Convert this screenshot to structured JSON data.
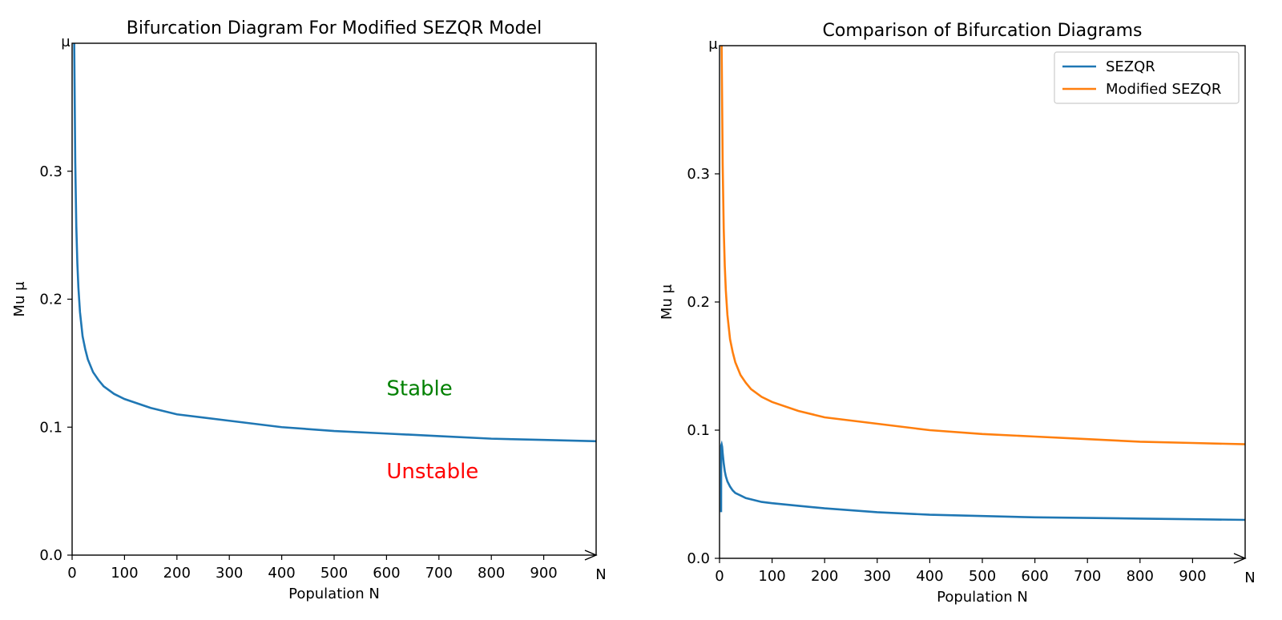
{
  "chart_data": [
    {
      "type": "line",
      "title": "Bifurcation Diagram For Modified SEZQR Model",
      "xlabel": "Population N",
      "ylabel": "Mu μ",
      "x_axis_end_label": "N",
      "y_axis_end_label": "μ",
      "xlim": [
        0,
        1000
      ],
      "ylim": [
        0,
        0.4
      ],
      "xticks": [
        "0",
        "100",
        "200",
        "300",
        "400",
        "500",
        "600",
        "700",
        "800",
        "900"
      ],
      "yticks": [
        "0.0",
        "0.1",
        "0.2",
        "0.3"
      ],
      "grid": false,
      "series": [
        {
          "color": "#1f77b4",
          "x": [
            4,
            5,
            6,
            8,
            10,
            12,
            15,
            20,
            25,
            30,
            40,
            50,
            60,
            80,
            100,
            150,
            200,
            300,
            400,
            500,
            600,
            700,
            800,
            900,
            1000
          ],
          "y": [
            0.4,
            0.353,
            0.307,
            0.257,
            0.228,
            0.209,
            0.19,
            0.171,
            0.161,
            0.153,
            0.143,
            0.137,
            0.132,
            0.126,
            0.122,
            0.115,
            0.11,
            0.105,
            0.1,
            0.097,
            0.095,
            0.093,
            0.091,
            0.09,
            0.089
          ]
        }
      ],
      "annotations": [
        {
          "text": "Stable",
          "x": 600,
          "y": 0.125,
          "color": "#008000"
        },
        {
          "text": "Unstable",
          "x": 600,
          "y": 0.06,
          "color": "#ff0000"
        }
      ]
    },
    {
      "type": "line",
      "title": "Comparison of Bifurcation Diagrams",
      "xlabel": "Population N",
      "ylabel": "Mu μ",
      "x_axis_end_label": "N",
      "y_axis_end_label": "μ",
      "xlim": [
        0,
        1000
      ],
      "ylim": [
        0,
        0.4
      ],
      "xticks": [
        "0",
        "100",
        "200",
        "300",
        "400",
        "500",
        "600",
        "700",
        "800",
        "900"
      ],
      "yticks": [
        "0.0",
        "0.1",
        "0.2",
        "0.3"
      ],
      "grid": false,
      "legend": "top-right",
      "series": [
        {
          "name": "SEZQR",
          "color": "#1f77b4",
          "x": [
            3,
            3.2,
            4,
            5,
            6,
            8,
            10,
            12,
            15,
            20,
            25,
            30,
            40,
            50,
            60,
            80,
            100,
            150,
            200,
            300,
            400,
            500,
            600,
            700,
            800,
            900,
            1000
          ],
          "y": [
            0.036,
            0.088,
            0.089,
            0.087,
            0.082,
            0.074,
            0.068,
            0.064,
            0.06,
            0.056,
            0.053,
            0.051,
            0.049,
            0.047,
            0.046,
            0.044,
            0.043,
            0.041,
            0.039,
            0.036,
            0.034,
            0.033,
            0.032,
            0.0315,
            0.031,
            0.0305,
            0.03
          ]
        },
        {
          "name": "Modified SEZQR",
          "color": "#ff7f0e",
          "x": [
            4,
            5,
            6,
            8,
            10,
            12,
            15,
            20,
            25,
            30,
            40,
            50,
            60,
            80,
            100,
            150,
            200,
            300,
            400,
            500,
            600,
            700,
            800,
            900,
            1000
          ],
          "y": [
            0.4,
            0.353,
            0.307,
            0.257,
            0.228,
            0.209,
            0.19,
            0.171,
            0.161,
            0.153,
            0.143,
            0.137,
            0.132,
            0.126,
            0.122,
            0.115,
            0.11,
            0.105,
            0.1,
            0.097,
            0.095,
            0.093,
            0.091,
            0.09,
            0.089
          ]
        }
      ]
    }
  ]
}
